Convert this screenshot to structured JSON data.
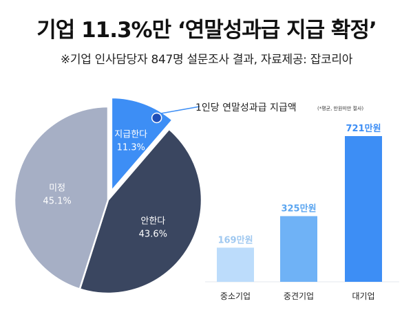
{
  "title": "기업 11.3%만 ‘연말성과급 지급 확정’",
  "subtitle": "※기업 인사담당자 847명 설문조사 결과, 자료제공: 잡코리아",
  "colors": {
    "pie_pay": "#3d8ef5",
    "pie_no": "#3a4660",
    "pie_undecided": "#a6afc5",
    "bar_small": "#bcdcfb",
    "bar_mid": "#6fb2f6",
    "bar_large": "#3d8ef5",
    "value_small": "#9fc8f0",
    "value_mid": "#5aa5f0",
    "value_large": "#3d8ef5"
  },
  "chart_data": [
    {
      "type": "pie",
      "slices": [
        {
          "label": "지급한다",
          "value": 11.3,
          "value_text": "11.3%",
          "color": "#3d8ef5",
          "exploded": true
        },
        {
          "label": "안한다",
          "value": 43.6,
          "value_text": "43.6%",
          "color": "#3a4660"
        },
        {
          "label": "미정",
          "value": 45.1,
          "value_text": "45.1%",
          "color": "#a6afc5"
        }
      ],
      "annotation": "1인당 연말성과급 지급액",
      "annotation_note": "(*평균, 만원미만 절사)"
    },
    {
      "type": "bar",
      "categories": [
        "중소기업",
        "중견기업",
        "대기업"
      ],
      "values": [
        169,
        325,
        721
      ],
      "value_labels": [
        "169만원",
        "325만원",
        "721만원"
      ],
      "ylim": [
        0,
        721
      ]
    }
  ]
}
